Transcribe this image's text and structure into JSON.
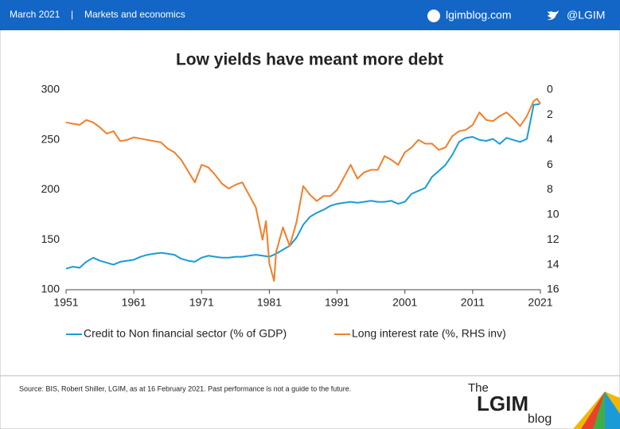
{
  "header": {
    "date": "March 2021",
    "separator": "|",
    "section": "Markets and economics",
    "site": "lgimblog.com",
    "handle": "@LGIM"
  },
  "chart_data": {
    "type": "line",
    "title": "Low yields have meant more debt",
    "xlim": [
      1951,
      2021
    ],
    "xticks": [
      1951,
      1961,
      1971,
      1981,
      1991,
      2001,
      2011,
      2021
    ],
    "ylim": [
      100,
      300
    ],
    "yticks": [
      100,
      150,
      200,
      250,
      300
    ],
    "y2lim": [
      0,
      16
    ],
    "y2ticks": [
      0,
      2,
      4,
      6,
      8,
      10,
      12,
      14,
      16
    ],
    "y2_inverted": true,
    "series": [
      {
        "name": "Credit to Non financial sector (% of GDP)",
        "color": "#1a9bd7",
        "x": [
          1951,
          1952,
          1953,
          1954,
          1955,
          1956,
          1957,
          1958,
          1959,
          1960,
          1961,
          1962,
          1963,
          1964,
          1965,
          1966,
          1967,
          1968,
          1969,
          1970,
          1971,
          1972,
          1973,
          1974,
          1975,
          1976,
          1977,
          1978,
          1979,
          1980,
          1981,
          1982,
          1983,
          1984,
          1985,
          1986,
          1987,
          1988,
          1989,
          1990,
          1991,
          1992,
          1993,
          1994,
          1995,
          1996,
          1997,
          1998,
          1999,
          2000,
          2001,
          2002,
          2003,
          2004,
          2005,
          2006,
          2007,
          2008,
          2009,
          2010,
          2011,
          2012,
          2013,
          2014,
          2015,
          2016,
          2017,
          2018,
          2019,
          2020,
          2020.9
        ],
        "values": [
          121,
          123,
          122,
          128,
          132,
          129,
          127,
          125,
          128,
          129,
          130,
          133,
          135,
          136,
          137,
          136,
          135,
          131,
          129,
          128,
          132,
          134,
          133,
          132,
          132,
          133,
          133,
          134,
          135,
          134,
          133,
          136,
          140,
          144,
          152,
          165,
          173,
          177,
          180,
          184,
          186,
          187,
          188,
          187,
          188,
          189,
          188,
          188,
          189,
          186,
          188,
          196,
          199,
          202,
          213,
          219,
          225,
          235,
          248,
          252,
          253,
          250,
          249,
          251,
          246,
          252,
          250,
          248,
          251,
          285,
          286
        ]
      },
      {
        "name": "Long interest rate (%, RHS inv)",
        "color": "#f07f2a",
        "axis": "y2",
        "x": [
          1951,
          1952,
          1953,
          1954,
          1955,
          1956,
          1957,
          1958,
          1959,
          1960,
          1961,
          1962,
          1963,
          1964,
          1965,
          1966,
          1967,
          1968,
          1969,
          1970,
          1971,
          1972,
          1973,
          1974,
          1975,
          1976,
          1977,
          1978,
          1979,
          1980,
          1980.5,
          1981,
          1981.7,
          1982,
          1983,
          1984,
          1985,
          1986,
          1987,
          1988,
          1989,
          1990,
          1991,
          1992,
          1993,
          1994,
          1995,
          1996,
          1997,
          1998,
          1999,
          2000,
          2001,
          2002,
          2003,
          2004,
          2005,
          2006,
          2007,
          2008,
          2009,
          2010,
          2011,
          2012,
          2013,
          2014,
          2015,
          2016,
          2017,
          2018,
          2019,
          2020,
          2020.5,
          2021
        ],
        "values": [
          2.6,
          2.7,
          2.8,
          2.4,
          2.6,
          3.0,
          3.5,
          3.3,
          4.1,
          4.0,
          3.8,
          3.9,
          4.0,
          4.1,
          4.2,
          4.7,
          5.0,
          5.6,
          6.5,
          7.4,
          6.0,
          6.2,
          6.8,
          7.5,
          7.9,
          7.6,
          7.4,
          8.4,
          9.4,
          12.0,
          10.5,
          13.9,
          15.3,
          13.0,
          11.0,
          12.5,
          10.6,
          7.7,
          8.4,
          8.9,
          8.5,
          8.5,
          8.0,
          7.0,
          6.0,
          7.1,
          6.6,
          6.4,
          6.4,
          5.3,
          5.6,
          6.0,
          5.0,
          4.6,
          4.0,
          4.3,
          4.3,
          4.8,
          4.6,
          3.7,
          3.3,
          3.2,
          2.8,
          1.8,
          2.4,
          2.5,
          2.1,
          1.8,
          2.3,
          2.9,
          2.1,
          0.9,
          0.7,
          1.1
        ]
      }
    ]
  },
  "footer": {
    "source": "Source: BIS, Robert Shiller, LGIM,  as at 16 February 2021. Past performance is not a guide to the future.",
    "logo_the": "The",
    "logo_name": "LGIM",
    "logo_blog": "blog"
  }
}
